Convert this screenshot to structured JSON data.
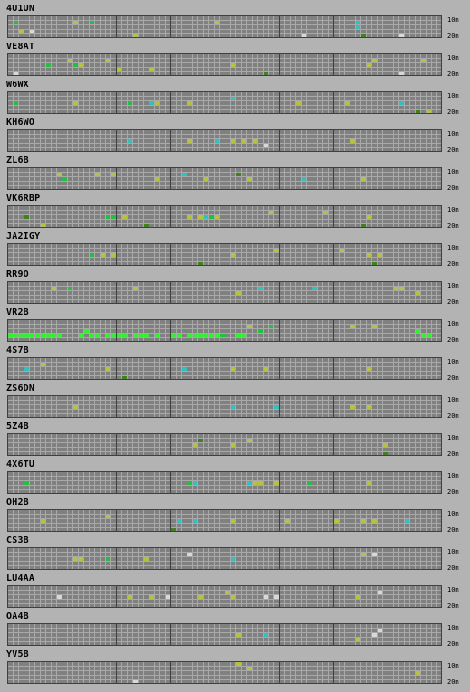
{
  "band_labels": {
    "top": "10m",
    "bottom": "20m"
  },
  "colors": {
    "background": "#b3b3b3",
    "grid_cell": "#808080",
    "grid_line": "#a9a9a9",
    "block_border": "#404040",
    "green": "#20c040",
    "bright_green": "#30f030",
    "yellow_green": "#b8c040",
    "cyan": "#30c0c0",
    "white": "#d8d8d8",
    "dark_green": "#408020"
  },
  "beacons": [
    {
      "callsign": "4U1UN",
      "spots": [
        [
          1,
          1,
          "green"
        ],
        [
          2,
          3,
          "yellow_green"
        ],
        [
          4,
          3,
          "white"
        ],
        [
          12,
          1,
          "yellow_green"
        ],
        [
          15,
          1,
          "green"
        ],
        [
          38,
          1,
          "yellow_green"
        ],
        [
          54,
          4,
          "white"
        ],
        [
          64,
          1,
          "cyan"
        ],
        [
          64,
          2,
          "cyan"
        ],
        [
          65,
          4,
          "dark_green"
        ],
        [
          72,
          4,
          "white"
        ],
        [
          23,
          4,
          "yellow_green"
        ]
      ]
    },
    {
      "callsign": "VE8AT",
      "spots": [
        [
          1,
          4,
          "white"
        ],
        [
          7,
          2,
          "green"
        ],
        [
          11,
          1,
          "yellow_green"
        ],
        [
          12,
          2,
          "green"
        ],
        [
          13,
          2,
          "yellow_green"
        ],
        [
          18,
          1,
          "yellow_green"
        ],
        [
          20,
          3,
          "yellow_green"
        ],
        [
          26,
          3,
          "yellow_green"
        ],
        [
          41,
          2,
          "yellow_green"
        ],
        [
          47,
          4,
          "dark_green"
        ],
        [
          67,
          1,
          "yellow_green"
        ],
        [
          66,
          2,
          "yellow_green"
        ],
        [
          72,
          4,
          "white"
        ],
        [
          76,
          1,
          "yellow_green"
        ]
      ]
    },
    {
      "callsign": "W6WX",
      "spots": [
        [
          1,
          2,
          "green"
        ],
        [
          12,
          2,
          "yellow_green"
        ],
        [
          22,
          2,
          "green"
        ],
        [
          26,
          2,
          "cyan"
        ],
        [
          27,
          2,
          "yellow_green"
        ],
        [
          33,
          2,
          "yellow_green"
        ],
        [
          41,
          1,
          "cyan"
        ],
        [
          53,
          2,
          "yellow_green"
        ],
        [
          62,
          2,
          "yellow_green"
        ],
        [
          72,
          2,
          "cyan"
        ],
        [
          75,
          4,
          "dark_green"
        ],
        [
          77,
          4,
          "yellow_green"
        ]
      ]
    },
    {
      "callsign": "KH6WO",
      "spots": [
        [
          22,
          2,
          "cyan"
        ],
        [
          33,
          2,
          "yellow_green"
        ],
        [
          38,
          2,
          "cyan"
        ],
        [
          41,
          2,
          "yellow_green"
        ],
        [
          43,
          2,
          "yellow_green"
        ],
        [
          45,
          2,
          "yellow_green"
        ],
        [
          47,
          3,
          "white"
        ],
        [
          63,
          2,
          "yellow_green"
        ]
      ]
    },
    {
      "callsign": "ZL6B",
      "spots": [
        [
          9,
          1,
          "yellow_green"
        ],
        [
          10,
          2,
          "green"
        ],
        [
          16,
          1,
          "yellow_green"
        ],
        [
          19,
          1,
          "yellow_green"
        ],
        [
          27,
          2,
          "yellow_green"
        ],
        [
          32,
          1,
          "cyan"
        ],
        [
          36,
          2,
          "yellow_green"
        ],
        [
          42,
          1,
          "dark_green"
        ],
        [
          44,
          2,
          "yellow_green"
        ],
        [
          54,
          2,
          "cyan"
        ],
        [
          65,
          2,
          "yellow_green"
        ]
      ]
    },
    {
      "callsign": "VK6RBP",
      "spots": [
        [
          3,
          2,
          "dark_green"
        ],
        [
          6,
          4,
          "yellow_green"
        ],
        [
          18,
          2,
          "green"
        ],
        [
          19,
          2,
          "green"
        ],
        [
          21,
          2,
          "yellow_green"
        ],
        [
          25,
          4,
          "dark_green"
        ],
        [
          33,
          2,
          "yellow_green"
        ],
        [
          35,
          2,
          "yellow_green"
        ],
        [
          36,
          2,
          "cyan"
        ],
        [
          37,
          2,
          "green"
        ],
        [
          38,
          2,
          "yellow_green"
        ],
        [
          48,
          1,
          "yellow_green"
        ],
        [
          58,
          1,
          "yellow_green"
        ],
        [
          66,
          2,
          "yellow_green"
        ],
        [
          65,
          4,
          "dark_green"
        ]
      ]
    },
    {
      "callsign": "JA2IGY",
      "spots": [
        [
          15,
          2,
          "green"
        ],
        [
          17,
          2,
          "yellow_green"
        ],
        [
          19,
          2,
          "yellow_green"
        ],
        [
          35,
          4,
          "dark_green"
        ],
        [
          41,
          2,
          "yellow_green"
        ],
        [
          49,
          1,
          "yellow_green"
        ],
        [
          61,
          1,
          "yellow_green"
        ],
        [
          66,
          2,
          "yellow_green"
        ],
        [
          68,
          2,
          "yellow_green"
        ],
        [
          67,
          4,
          "dark_green"
        ]
      ]
    },
    {
      "callsign": "RR9O",
      "spots": [
        [
          8,
          1,
          "yellow_green"
        ],
        [
          11,
          1,
          "green"
        ],
        [
          23,
          1,
          "yellow_green"
        ],
        [
          42,
          2,
          "yellow_green"
        ],
        [
          46,
          1,
          "cyan"
        ],
        [
          56,
          1,
          "cyan"
        ],
        [
          71,
          1,
          "yellow_green"
        ],
        [
          72,
          1,
          "yellow_green"
        ],
        [
          75,
          2,
          "yellow_green"
        ]
      ]
    },
    {
      "callsign": "VR2B",
      "spots": [
        [
          0,
          3,
          "bright_green"
        ],
        [
          1,
          3,
          "bright_green"
        ],
        [
          2,
          3,
          "bright_green"
        ],
        [
          3,
          3,
          "bright_green"
        ],
        [
          4,
          3,
          "bright_green"
        ],
        [
          5,
          3,
          "bright_green"
        ],
        [
          6,
          3,
          "bright_green"
        ],
        [
          7,
          3,
          "bright_green"
        ],
        [
          8,
          3,
          "bright_green"
        ],
        [
          9,
          3,
          "bright_green"
        ],
        [
          13,
          3,
          "bright_green"
        ],
        [
          14,
          2,
          "bright_green"
        ],
        [
          15,
          3,
          "bright_green"
        ],
        [
          16,
          3,
          "bright_green"
        ],
        [
          18,
          3,
          "bright_green"
        ],
        [
          19,
          3,
          "bright_green"
        ],
        [
          20,
          3,
          "bright_green"
        ],
        [
          21,
          3,
          "bright_green"
        ],
        [
          23,
          3,
          "bright_green"
        ],
        [
          24,
          3,
          "bright_green"
        ],
        [
          25,
          3,
          "bright_green"
        ],
        [
          27,
          3,
          "bright_green"
        ],
        [
          30,
          3,
          "bright_green"
        ],
        [
          31,
          3,
          "bright_green"
        ],
        [
          33,
          3,
          "bright_green"
        ],
        [
          34,
          3,
          "bright_green"
        ],
        [
          35,
          3,
          "bright_green"
        ],
        [
          36,
          3,
          "bright_green"
        ],
        [
          37,
          3,
          "bright_green"
        ],
        [
          38,
          3,
          "bright_green"
        ],
        [
          39,
          3,
          "green"
        ],
        [
          42,
          3,
          "bright_green"
        ],
        [
          43,
          3,
          "bright_green"
        ],
        [
          44,
          1,
          "yellow_green"
        ],
        [
          46,
          2,
          "green"
        ],
        [
          48,
          1,
          "green"
        ],
        [
          63,
          1,
          "yellow_green"
        ],
        [
          67,
          1,
          "yellow_green"
        ],
        [
          75,
          2,
          "bright_green"
        ],
        [
          76,
          3,
          "bright_green"
        ],
        [
          77,
          3,
          "bright_green"
        ]
      ]
    },
    {
      "callsign": "4S7B",
      "spots": [
        [
          3,
          2,
          "cyan"
        ],
        [
          6,
          1,
          "yellow_green"
        ],
        [
          18,
          2,
          "yellow_green"
        ],
        [
          21,
          4,
          "dark_green"
        ],
        [
          32,
          2,
          "cyan"
        ],
        [
          41,
          2,
          "yellow_green"
        ],
        [
          47,
          2,
          "yellow_green"
        ],
        [
          66,
          2,
          "yellow_green"
        ]
      ]
    },
    {
      "callsign": "ZS6DN",
      "spots": [
        [
          12,
          2,
          "yellow_green"
        ],
        [
          41,
          2,
          "cyan"
        ],
        [
          49,
          2,
          "cyan"
        ],
        [
          63,
          2,
          "yellow_green"
        ],
        [
          66,
          2,
          "yellow_green"
        ]
      ]
    },
    {
      "callsign": "5Z4B",
      "spots": [
        [
          34,
          2,
          "yellow_green"
        ],
        [
          35,
          1,
          "dark_green"
        ],
        [
          41,
          2,
          "yellow_green"
        ],
        [
          44,
          1,
          "yellow_green"
        ],
        [
          69,
          2,
          "yellow_green"
        ],
        [
          69,
          4,
          "dark_green"
        ]
      ]
    },
    {
      "callsign": "4X6TU",
      "spots": [
        [
          3,
          2,
          "green"
        ],
        [
          33,
          2,
          "green"
        ],
        [
          34,
          2,
          "cyan"
        ],
        [
          44,
          2,
          "cyan"
        ],
        [
          45,
          2,
          "yellow_green"
        ],
        [
          46,
          2,
          "yellow_green"
        ],
        [
          49,
          2,
          "yellow_green"
        ],
        [
          55,
          2,
          "green"
        ],
        [
          66,
          2,
          "yellow_green"
        ]
      ]
    },
    {
      "callsign": "OH2B",
      "spots": [
        [
          6,
          2,
          "yellow_green"
        ],
        [
          18,
          1,
          "yellow_green"
        ],
        [
          30,
          4,
          "dark_green"
        ],
        [
          31,
          2,
          "cyan"
        ],
        [
          34,
          2,
          "cyan"
        ],
        [
          41,
          2,
          "yellow_green"
        ],
        [
          51,
          2,
          "yellow_green"
        ],
        [
          60,
          2,
          "yellow_green"
        ],
        [
          65,
          2,
          "yellow_green"
        ],
        [
          67,
          2,
          "yellow_green"
        ],
        [
          73,
          2,
          "cyan"
        ]
      ]
    },
    {
      "callsign": "CS3B",
      "spots": [
        [
          12,
          2,
          "yellow_green"
        ],
        [
          13,
          2,
          "yellow_green"
        ],
        [
          18,
          2,
          "green"
        ],
        [
          25,
          2,
          "yellow_green"
        ],
        [
          33,
          1,
          "white"
        ],
        [
          41,
          2,
          "cyan"
        ],
        [
          65,
          1,
          "yellow_green"
        ],
        [
          67,
          1,
          "white"
        ]
      ]
    },
    {
      "callsign": "LU4AA",
      "spots": [
        [
          9,
          2,
          "white"
        ],
        [
          22,
          2,
          "yellow_green"
        ],
        [
          26,
          2,
          "yellow_green"
        ],
        [
          29,
          2,
          "white"
        ],
        [
          35,
          2,
          "yellow_green"
        ],
        [
          40,
          1,
          "yellow_green"
        ],
        [
          41,
          2,
          "yellow_green"
        ],
        [
          47,
          2,
          "white"
        ],
        [
          49,
          2,
          "white"
        ],
        [
          64,
          2,
          "yellow_green"
        ],
        [
          68,
          1,
          "white"
        ]
      ]
    },
    {
      "callsign": "OA4B",
      "spots": [
        [
          42,
          2,
          "yellow_green"
        ],
        [
          47,
          2,
          "cyan"
        ],
        [
          64,
          3,
          "yellow_green"
        ],
        [
          67,
          2,
          "white"
        ],
        [
          68,
          1,
          "white"
        ]
      ]
    },
    {
      "callsign": "YV5B",
      "spots": [
        [
          23,
          4,
          "white"
        ],
        [
          42,
          0,
          "yellow_green"
        ],
        [
          44,
          1,
          "yellow_green"
        ],
        [
          75,
          2,
          "yellow_green"
        ]
      ]
    }
  ]
}
